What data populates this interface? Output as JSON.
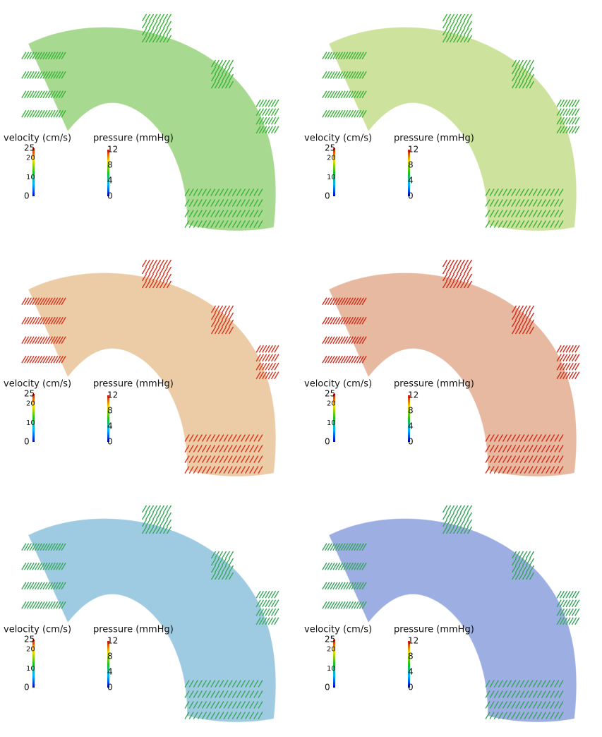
{
  "panels": [
    {
      "surface_color": "#a8d991",
      "vector_color": "#39b53a",
      "velocity_legend": {
        "title": "velocity (cm/s)",
        "ticks": [
          25,
          20,
          10,
          0
        ]
      },
      "pressure_legend": {
        "title": "pressure (mmHg)",
        "ticks": [
          12,
          8,
          4,
          0
        ]
      }
    },
    {
      "surface_color": "#cde29c",
      "vector_color": "#3cb23a",
      "velocity_legend": {
        "title": "velocity (cm/s)",
        "ticks": [
          25,
          20,
          10,
          0
        ]
      },
      "pressure_legend": {
        "title": "pressure (mmHg)",
        "ticks": [
          12,
          8,
          4,
          0
        ]
      }
    },
    {
      "surface_color": "#ecccA6",
      "vector_color": "#d9341e",
      "velocity_legend": {
        "title": "velocity (cm/s)",
        "ticks": [
          25,
          20,
          10,
          0
        ]
      },
      "pressure_legend": {
        "title": "pressure (mmHg)",
        "ticks": [
          12,
          8,
          4,
          0
        ]
      }
    },
    {
      "surface_color": "#e7b9a0",
      "vector_color": "#d02c1c",
      "velocity_legend": {
        "title": "velocity (cm/s)",
        "ticks": [
          25,
          20,
          10,
          0
        ]
      },
      "pressure_legend": {
        "title": "pressure (mmHg)",
        "ticks": [
          12,
          8,
          4,
          0
        ]
      }
    },
    {
      "surface_color": "#9fcbe2",
      "vector_color": "#38a85c",
      "velocity_legend": {
        "title": "velocity (cm/s)",
        "ticks": [
          25,
          20,
          10,
          0
        ]
      },
      "pressure_legend": {
        "title": "pressure (mmHg)",
        "ticks": [
          12,
          8,
          4,
          0
        ]
      }
    },
    {
      "surface_color": "#9dafe2",
      "vector_color": "#36a35e",
      "velocity_legend": {
        "title": "velocity (cm/s)",
        "ticks": [
          25,
          20,
          10,
          0
        ]
      },
      "pressure_legend": {
        "title": "pressure (mmHg)",
        "ticks": [
          12,
          8,
          4,
          0
        ]
      }
    }
  ]
}
